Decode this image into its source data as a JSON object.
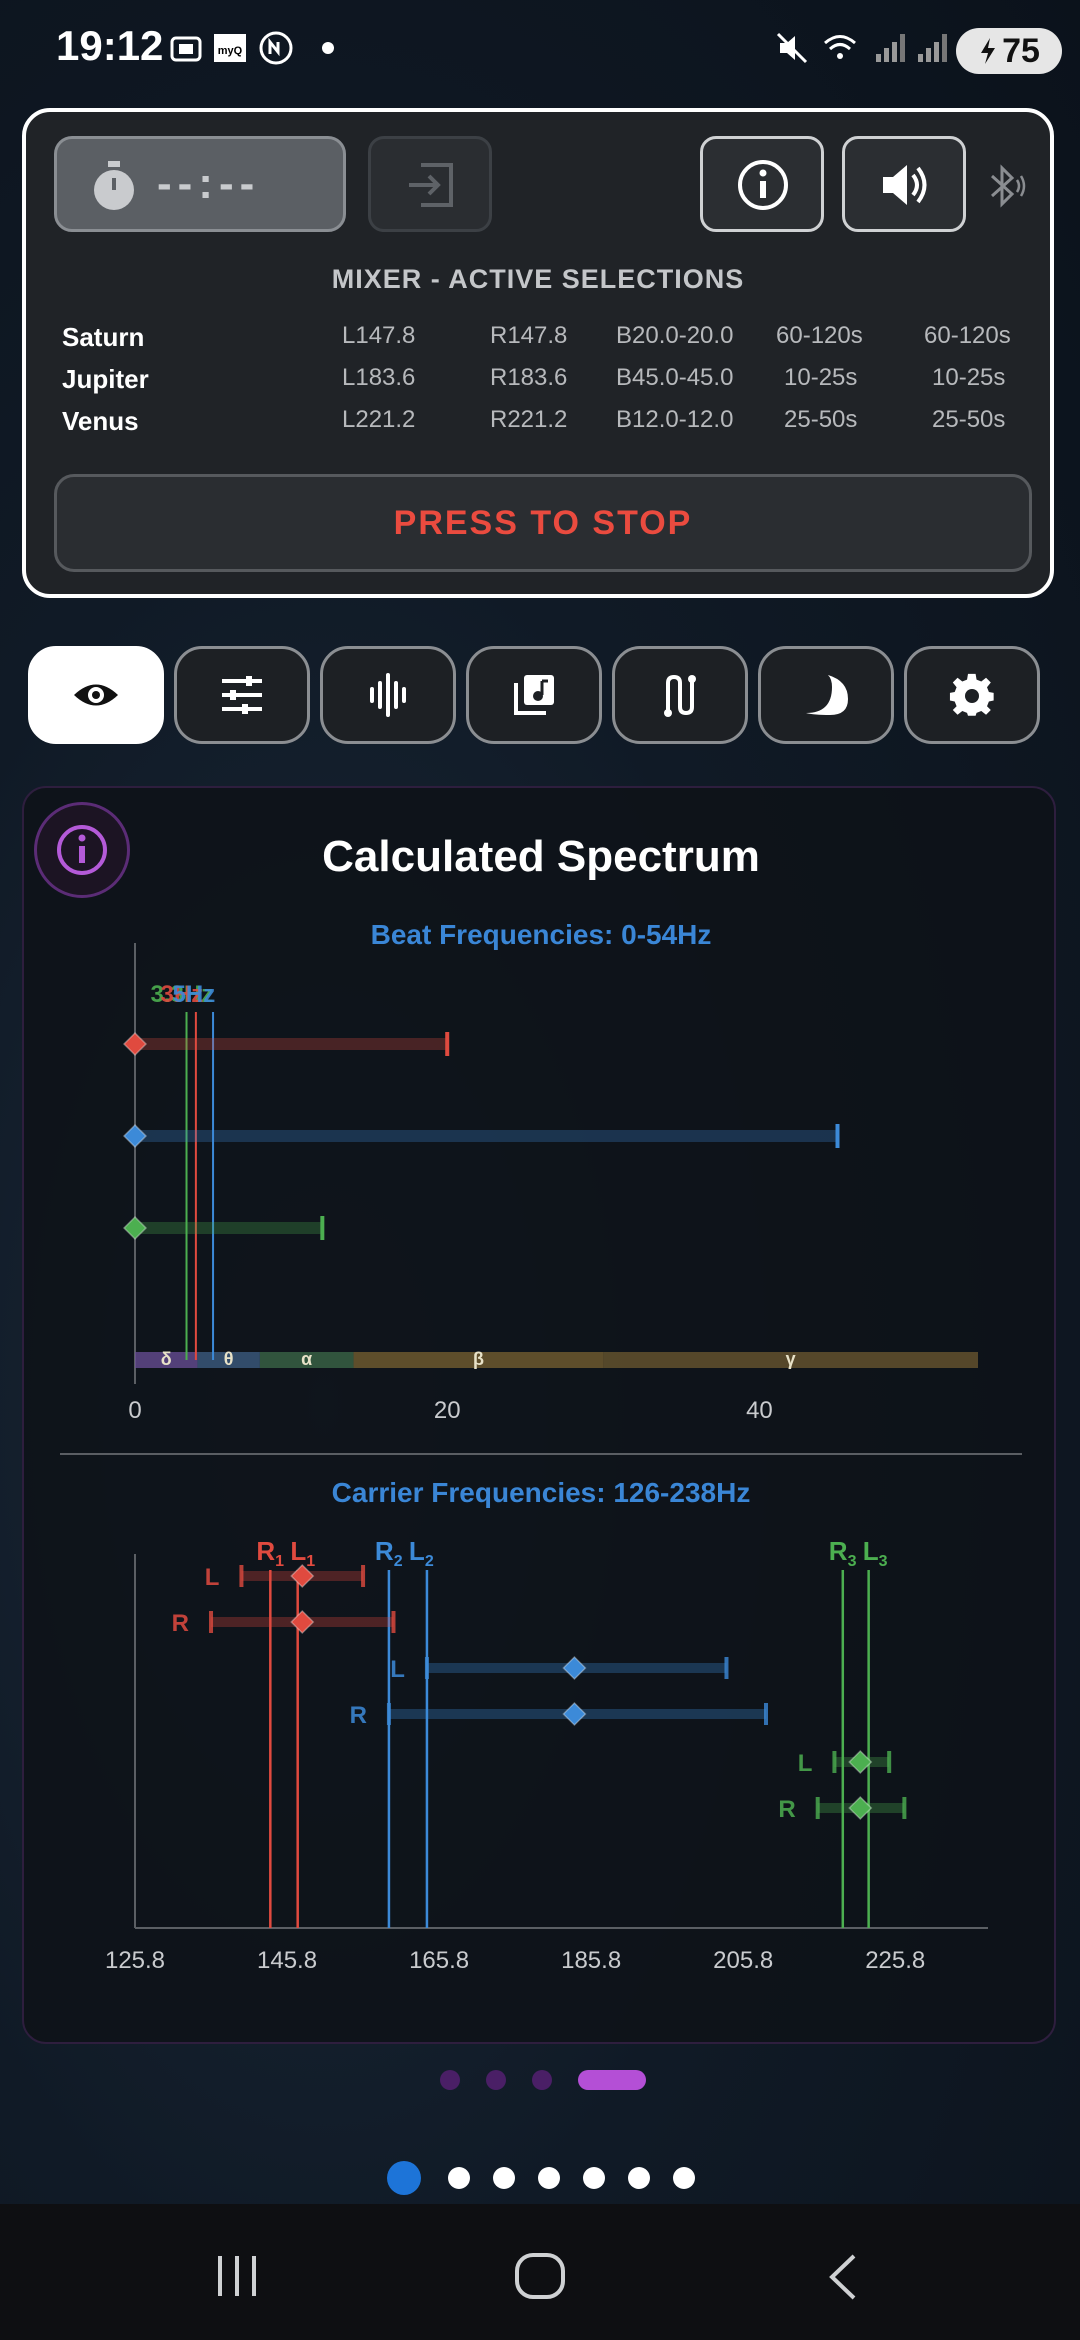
{
  "status_bar": {
    "time": "19:12",
    "battery": "75",
    "icons": [
      "screenshot-icon",
      "myq-icon",
      "nfc-icon",
      "dot-icon",
      "mute-icon",
      "wifi-icon",
      "signal-icon",
      "signal-icon",
      "battery-icon"
    ]
  },
  "mixer": {
    "timer_text": "--:--",
    "title": "MIXER - ACTIVE SELECTIONS",
    "rows": [
      {
        "name": "Saturn",
        "left": "L147.8",
        "right": "R147.8",
        "beat": "B20.0-20.0",
        "dur1": "60-120s",
        "dur2": "60-120s"
      },
      {
        "name": "Jupiter",
        "left": "L183.6",
        "right": "R183.6",
        "beat": "B45.0-45.0",
        "dur1": "10-25s",
        "dur2": "10-25s"
      },
      {
        "name": "Venus",
        "left": "L221.2",
        "right": "R221.2",
        "beat": "B12.0-12.0",
        "dur1": "25-50s",
        "dur2": "25-50s"
      }
    ],
    "stop_label": "PRESS TO STOP"
  },
  "tabs": [
    {
      "icon": "eye-icon",
      "active": true
    },
    {
      "icon": "sliders-icon",
      "active": false
    },
    {
      "icon": "waveform-icon",
      "active": false
    },
    {
      "icon": "music-library-icon",
      "active": false
    },
    {
      "icon": "route-icon",
      "active": false
    },
    {
      "icon": "moon-icon",
      "active": false
    },
    {
      "icon": "gear-icon",
      "active": false
    }
  ],
  "spectrum": {
    "title": "Calculated Spectrum",
    "beat_title": "Beat Frequencies: 0-54Hz",
    "carrier_title": "Carrier Frequencies: 126-238Hz"
  },
  "chart_data": [
    {
      "type": "scatter",
      "title": "Beat Frequencies: 0-54Hz",
      "xlim": [
        0,
        54
      ],
      "x_ticks": [
        "0",
        "20",
        "40"
      ],
      "top_labels": [
        "3.3Hz",
        "3Hz",
        "5Hz"
      ],
      "bands": [
        {
          "label": "δ",
          "from": 0,
          "to": 4,
          "color": "#6b4f9a"
        },
        {
          "label": "θ",
          "from": 4,
          "to": 8,
          "color": "#3f5f85"
        },
        {
          "label": "α",
          "from": 8,
          "to": 14,
          "color": "#3d6a4a"
        },
        {
          "label": "β",
          "from": 14,
          "to": 30,
          "color": "#7a6232"
        },
        {
          "label": "γ",
          "from": 30,
          "to": 54,
          "color": "#6e5a30"
        }
      ],
      "series": [
        {
          "color": "#e04a3f",
          "start": 0,
          "end": 20
        },
        {
          "color": "#3c8ad8",
          "start": 0,
          "end": 45
        },
        {
          "color": "#4caf50",
          "start": 0,
          "end": 12
        }
      ],
      "vlines": [
        {
          "x": 3.3,
          "color": "#4caf50"
        },
        {
          "x": 3.9,
          "color": "#e04a3f"
        },
        {
          "x": 5,
          "color": "#3c8ad8"
        }
      ]
    },
    {
      "type": "scatter",
      "title": "Carrier Frequencies: 126-238Hz",
      "xlim": [
        125.8,
        238
      ],
      "x_ticks": [
        "125.8",
        "145.8",
        "165.8",
        "185.8",
        "205.8",
        "225.8"
      ],
      "vline_labels": [
        {
          "text": "R",
          "sub": "1",
          "color": "#e04a3f"
        },
        {
          "text": "L",
          "sub": "1",
          "color": "#e04a3f"
        },
        {
          "text": "R",
          "sub": "2",
          "color": "#3c8ad8"
        },
        {
          "text": "L",
          "sub": "2",
          "color": "#3c8ad8"
        },
        {
          "text": "R",
          "sub": "3",
          "color": "#4caf50"
        },
        {
          "text": "L",
          "sub": "3",
          "color": "#4caf50"
        }
      ],
      "vlines": [
        {
          "x": 143.6,
          "color": "#e04a3f"
        },
        {
          "x": 147.2,
          "color": "#e04a3f"
        },
        {
          "x": 159.2,
          "color": "#3c8ad8"
        },
        {
          "x": 164.2,
          "color": "#3c8ad8"
        },
        {
          "x": 218.9,
          "color": "#4caf50"
        },
        {
          "x": 222.3,
          "color": "#4caf50"
        }
      ],
      "series": [
        {
          "label": "L",
          "color": "#e04a3f",
          "center": 147.8,
          "low": 139.8,
          "high": 155.8
        },
        {
          "label": "R",
          "color": "#e04a3f",
          "center": 147.8,
          "low": 135.8,
          "high": 159.8
        },
        {
          "label": "L",
          "color": "#3c8ad8",
          "center": 183.6,
          "low": 164.2,
          "high": 203.6
        },
        {
          "label": "R",
          "color": "#3c8ad8",
          "center": 183.6,
          "low": 159.2,
          "high": 208.8
        },
        {
          "label": "L",
          "color": "#4caf50",
          "center": 221.2,
          "low": 217.8,
          "high": 225.0
        },
        {
          "label": "R",
          "color": "#4caf50",
          "center": 221.2,
          "low": 215.6,
          "high": 227.0
        }
      ]
    }
  ],
  "pager_small": {
    "count": 4,
    "active": 3
  },
  "pager_main": {
    "count": 7,
    "active": 0
  },
  "colors": {
    "accent_red": "#e04a3f",
    "accent_blue": "#3c8ad8",
    "accent_green": "#4caf50",
    "accent_purple": "#b44fd6"
  }
}
